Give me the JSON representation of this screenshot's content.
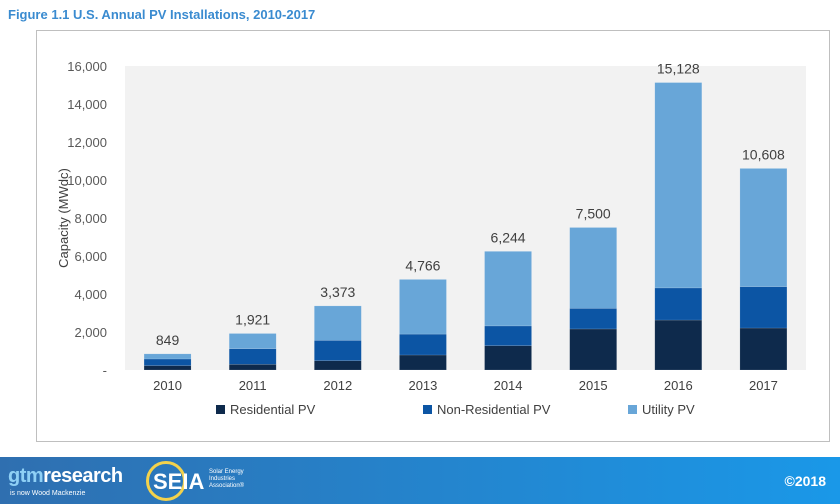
{
  "title": "Figure 1.1 U.S. Annual PV Installations, 2010-2017",
  "chart_data": {
    "type": "bar",
    "stacked": true,
    "title": "Figure 1.1 U.S. Annual PV Installations, 2010-2017",
    "xlabel": "",
    "ylabel": "Capacity (MWdc)",
    "ylim": [
      0,
      16000
    ],
    "yticks": [
      "-",
      "2,000",
      "4,000",
      "6,000",
      "8,000",
      "10,000",
      "12,000",
      "14,000",
      "16,000"
    ],
    "categories": [
      "2010",
      "2011",
      "2012",
      "2013",
      "2014",
      "2015",
      "2016",
      "2017"
    ],
    "series": [
      {
        "name": "Residential PV",
        "color": "#0e2a4c",
        "values": [
          230,
          300,
          490,
          790,
          1280,
          2160,
          2630,
          2210
        ]
      },
      {
        "name": "Non-Residential PV",
        "color": "#0c55a4",
        "values": [
          350,
          820,
          1070,
          1100,
          1040,
          1085,
          1690,
          2175
        ]
      },
      {
        "name": "Utility PV",
        "color": "#68a6d8",
        "values": [
          269,
          801,
          1813,
          2876,
          3924,
          4255,
          10808,
          6223
        ]
      }
    ],
    "totals": [
      "849",
      "1,921",
      "3,373",
      "4,766",
      "6,244",
      "7,500",
      "15,128",
      "10,608"
    ],
    "grid": false,
    "legend": "bottom"
  },
  "footer": {
    "brand_a": "gtm",
    "brand_b": "research",
    "brand_sub": "is now Wood Mackenzie",
    "seia": "SEIA",
    "seia_sub": "Solar Energy Industries Association®",
    "copyright": "©2018"
  }
}
